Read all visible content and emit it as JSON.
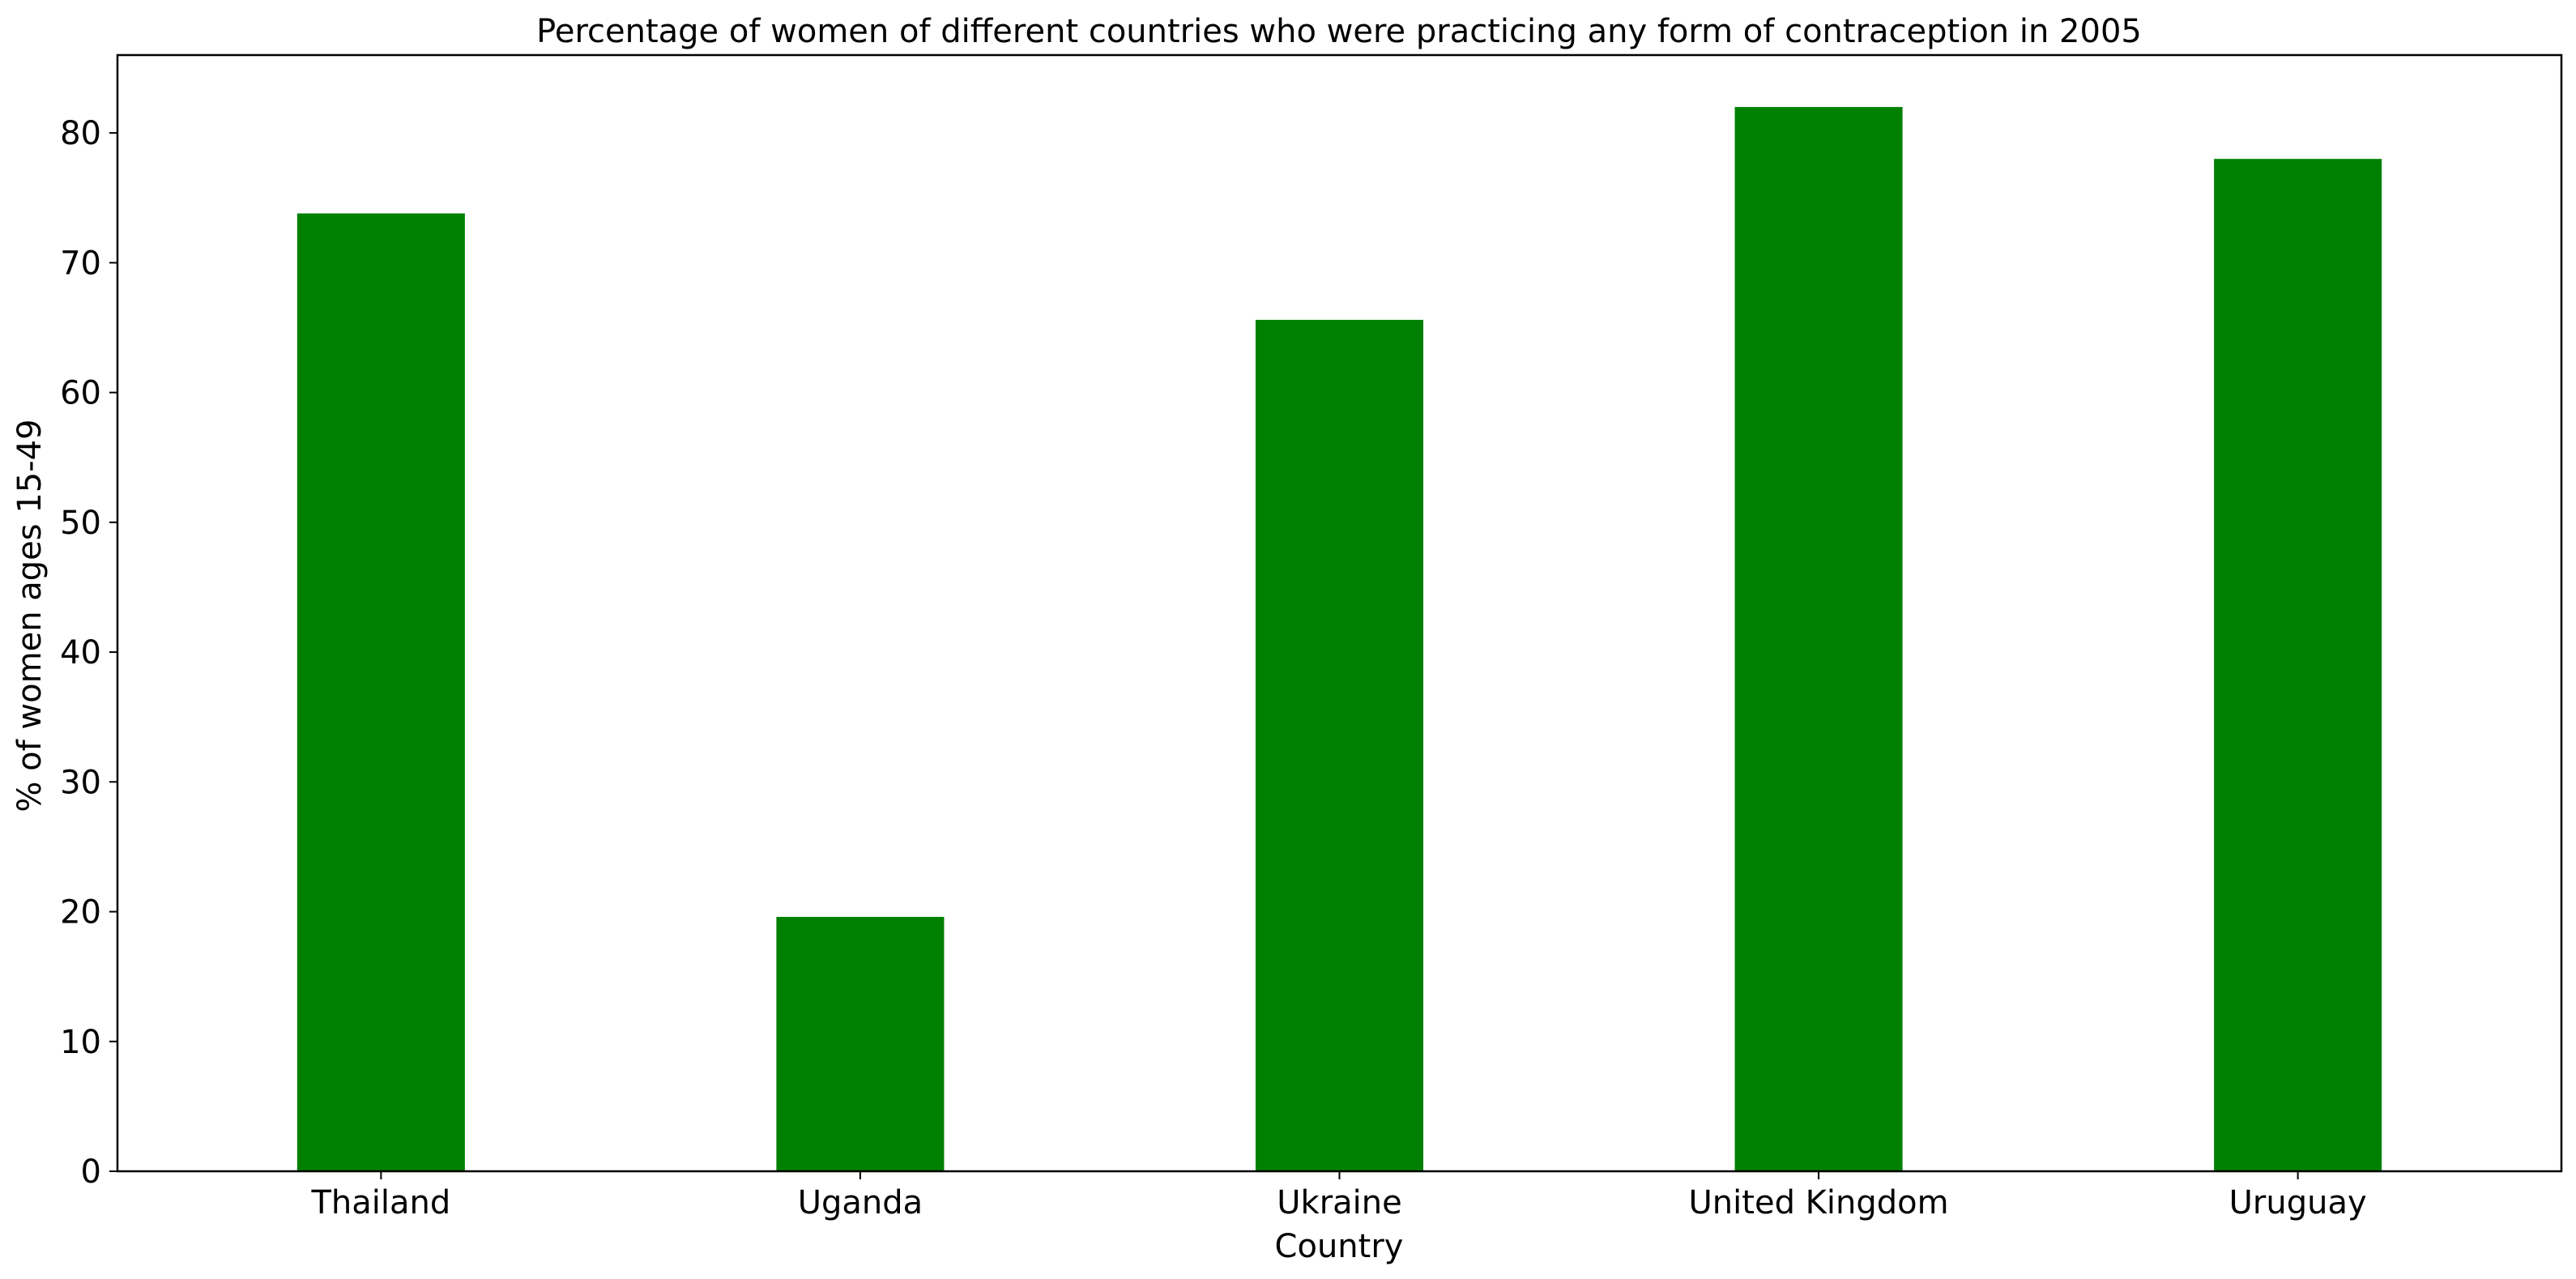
{
  "chart_data": {
    "type": "bar",
    "title": "Percentage of women of different countries who were practicing any form of contraception in 2005",
    "xlabel": "Country",
    "ylabel": "% of women ages 15-49",
    "categories": [
      "Thailand",
      "Uganda",
      "Ukraine",
      "United Kingdom",
      "Uruguay"
    ],
    "values": [
      73.8,
      19.6,
      65.6,
      82.0,
      78.0
    ],
    "ylim": [
      0,
      86
    ],
    "yticks": [
      0,
      10,
      20,
      30,
      40,
      50,
      60,
      70,
      80
    ],
    "bar_color": "#008000",
    "grid": false,
    "legend": "none"
  }
}
